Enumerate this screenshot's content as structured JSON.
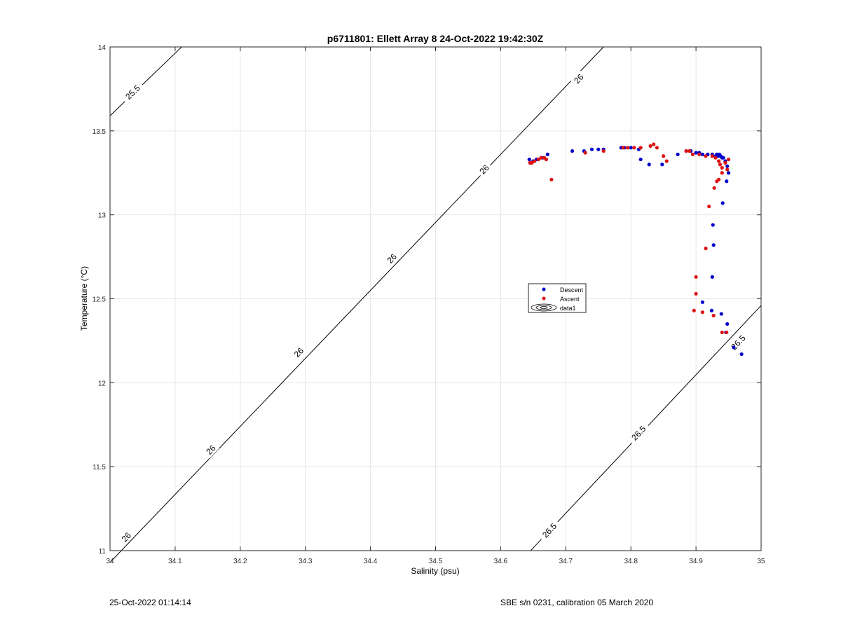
{
  "chart_data": {
    "type": "scatter",
    "title": "p6711801: Ellett Array 8 24-Oct-2022 19:42:30Z",
    "xlabel": "Salinity (psu)",
    "ylabel": "Temperature (°C)",
    "xlim": [
      34,
      35
    ],
    "ylim": [
      11,
      14
    ],
    "x_ticks": [
      "34",
      "34.1",
      "34.2",
      "34.3",
      "34.4",
      "34.5",
      "34.6",
      "34.7",
      "34.8",
      "34.9",
      "35"
    ],
    "y_ticks": [
      "11",
      "11.5",
      "12",
      "12.5",
      "13",
      "13.5",
      "14"
    ],
    "grid": true,
    "legend_position": "center-right",
    "legend": [
      "Descent",
      "Ascent",
      "data1"
    ],
    "colors": {
      "descent": "#0000cc",
      "ascent": "#dd1111",
      "contour": "#000000",
      "grid": "#e6e6e6"
    },
    "series": [
      {
        "name": "Descent",
        "points": [
          [
            34.644,
            13.33
          ],
          [
            34.646,
            13.31
          ],
          [
            34.65,
            13.32
          ],
          [
            34.655,
            13.33
          ],
          [
            34.665,
            13.34
          ],
          [
            34.672,
            13.36
          ],
          [
            34.71,
            13.38
          ],
          [
            34.728,
            13.38
          ],
          [
            34.74,
            13.39
          ],
          [
            34.75,
            13.39
          ],
          [
            34.758,
            13.39
          ],
          [
            34.785,
            13.4
          ],
          [
            34.79,
            13.4
          ],
          [
            34.8,
            13.4
          ],
          [
            34.812,
            13.39
          ],
          [
            34.815,
            13.33
          ],
          [
            34.828,
            13.3
          ],
          [
            34.848,
            13.3
          ],
          [
            34.872,
            13.36
          ],
          [
            34.885,
            13.38
          ],
          [
            34.892,
            13.38
          ],
          [
            34.9,
            13.37
          ],
          [
            34.905,
            13.37
          ],
          [
            34.91,
            13.36
          ],
          [
            34.918,
            13.36
          ],
          [
            34.925,
            13.36
          ],
          [
            34.93,
            13.35
          ],
          [
            34.932,
            13.36
          ],
          [
            34.934,
            13.35
          ],
          [
            34.936,
            13.36
          ],
          [
            34.938,
            13.35
          ],
          [
            34.94,
            13.34
          ],
          [
            34.942,
            13.34
          ],
          [
            34.945,
            13.32
          ],
          [
            34.948,
            13.29
          ],
          [
            34.95,
            13.25
          ],
          [
            34.947,
            13.2
          ],
          [
            34.941,
            13.07
          ],
          [
            34.926,
            12.94
          ],
          [
            34.927,
            12.82
          ],
          [
            34.925,
            12.63
          ],
          [
            34.91,
            12.48
          ],
          [
            34.924,
            12.43
          ],
          [
            34.939,
            12.41
          ],
          [
            34.948,
            12.35
          ],
          [
            34.946,
            12.3
          ],
          [
            34.958,
            12.21
          ],
          [
            34.97,
            12.17
          ]
        ]
      },
      {
        "name": "Ascent",
        "points": [
          [
            34.645,
            13.31
          ],
          [
            34.648,
            13.31
          ],
          [
            34.652,
            13.32
          ],
          [
            34.658,
            13.33
          ],
          [
            34.662,
            13.34
          ],
          [
            34.667,
            13.34
          ],
          [
            34.67,
            13.33
          ],
          [
            34.678,
            13.21
          ],
          [
            34.73,
            13.37
          ],
          [
            34.758,
            13.38
          ],
          [
            34.788,
            13.4
          ],
          [
            34.795,
            13.4
          ],
          [
            34.805,
            13.4
          ],
          [
            34.815,
            13.4
          ],
          [
            34.83,
            13.41
          ],
          [
            34.835,
            13.42
          ],
          [
            34.84,
            13.4
          ],
          [
            34.85,
            13.35
          ],
          [
            34.855,
            13.32
          ],
          [
            34.885,
            13.38
          ],
          [
            34.89,
            13.38
          ],
          [
            34.895,
            13.36
          ],
          [
            34.905,
            13.36
          ],
          [
            34.915,
            13.35
          ],
          [
            34.925,
            13.35
          ],
          [
            34.93,
            13.34
          ],
          [
            34.935,
            13.32
          ],
          [
            34.937,
            13.3
          ],
          [
            34.94,
            13.28
          ],
          [
            34.945,
            13.31
          ],
          [
            34.95,
            13.33
          ],
          [
            34.948,
            13.27
          ],
          [
            34.94,
            13.25
          ],
          [
            34.935,
            13.21
          ],
          [
            34.932,
            13.2
          ],
          [
            34.928,
            13.16
          ],
          [
            34.92,
            13.05
          ],
          [
            34.915,
            12.8
          ],
          [
            34.9,
            12.63
          ],
          [
            34.9,
            12.53
          ],
          [
            34.897,
            12.43
          ],
          [
            34.91,
            12.42
          ],
          [
            34.927,
            12.4
          ],
          [
            34.94,
            12.3
          ],
          [
            34.947,
            12.3
          ]
        ]
      }
    ],
    "isopycnals": [
      {
        "label": "25.5",
        "points": [
          [
            34.0,
            13.59
          ],
          [
            34.11,
            14.0
          ]
        ],
        "label_positions": [
          [
            34.035,
            13.73
          ]
        ]
      },
      {
        "label": "26",
        "points": [
          [
            34.0,
            10.93
          ],
          [
            34.758,
            14.0
          ]
        ],
        "label_positions": [
          [
            34.025,
            11.08
          ],
          [
            34.155,
            11.6
          ],
          [
            34.29,
            12.18
          ],
          [
            34.433,
            12.74
          ],
          [
            34.575,
            13.27
          ],
          [
            34.72,
            13.81
          ]
        ]
      },
      {
        "label": "26.5",
        "points": [
          [
            34.646,
            11.0
          ],
          [
            35.0,
            12.46
          ]
        ],
        "label_positions": [
          [
            34.675,
            11.12
          ],
          [
            34.812,
            11.7
          ],
          [
            34.965,
            12.24
          ]
        ]
      }
    ]
  },
  "footer": {
    "left": "25-Oct-2022 01:14:14",
    "right": "SBE s/n 0231, calibration 05 March 2020"
  }
}
